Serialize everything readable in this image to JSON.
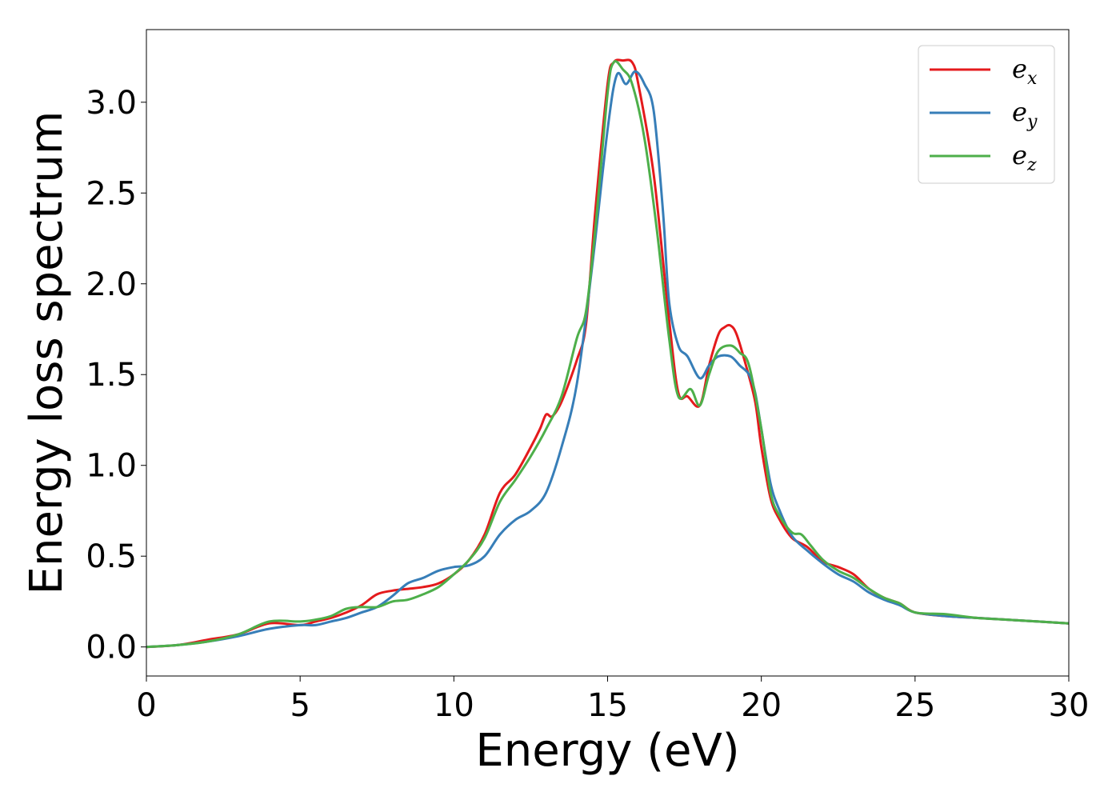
{
  "chart_data": {
    "type": "line",
    "title": "",
    "xlabel": "Energy (eV)",
    "ylabel": "Energy loss spectrum",
    "xlim": [
      0,
      30
    ],
    "ylim": [
      -0.16,
      3.4
    ],
    "xticks": [
      0,
      5,
      10,
      15,
      20,
      25,
      30
    ],
    "xtick_labels": [
      "0",
      "5",
      "10",
      "15",
      "20",
      "25",
      "30"
    ],
    "yticks": [
      0.0,
      0.5,
      1.0,
      1.5,
      2.0,
      2.5,
      3.0
    ],
    "ytick_labels": [
      "0.0",
      "0.5",
      "1.0",
      "1.5",
      "2.0",
      "2.5",
      "3.0"
    ],
    "grid": false,
    "legend_position": "top-right",
    "series": [
      {
        "name": "e_x",
        "legend_base": "e",
        "legend_sub": "x",
        "color": "#e41a1c",
        "x": [
          0,
          1,
          2,
          3,
          4,
          5,
          5.5,
          6,
          6.5,
          7,
          7.5,
          8,
          8.5,
          9,
          9.5,
          10,
          10.5,
          11,
          11.5,
          12,
          12.5,
          12.8,
          13,
          13.2,
          13.5,
          14,
          14.3,
          14.6,
          15,
          15.2,
          15.5,
          15.8,
          16,
          16.5,
          17,
          17.3,
          17.6,
          18,
          18.3,
          18.6,
          18.8,
          19,
          19.2,
          19.5,
          19.8,
          20,
          20.3,
          20.6,
          21,
          21.5,
          22,
          22.5,
          23,
          23.5,
          24,
          24.5,
          25,
          26,
          27,
          28,
          29,
          30
        ],
        "y": [
          0.0,
          0.01,
          0.04,
          0.07,
          0.13,
          0.12,
          0.14,
          0.16,
          0.19,
          0.23,
          0.29,
          0.31,
          0.32,
          0.33,
          0.35,
          0.4,
          0.48,
          0.62,
          0.85,
          0.95,
          1.1,
          1.2,
          1.28,
          1.27,
          1.35,
          1.58,
          1.78,
          2.4,
          3.1,
          3.22,
          3.23,
          3.22,
          3.1,
          2.6,
          1.8,
          1.4,
          1.38,
          1.33,
          1.55,
          1.72,
          1.76,
          1.77,
          1.72,
          1.55,
          1.35,
          1.1,
          0.82,
          0.7,
          0.6,
          0.55,
          0.47,
          0.44,
          0.4,
          0.32,
          0.27,
          0.24,
          0.19,
          0.17,
          0.16,
          0.15,
          0.14,
          0.13
        ]
      },
      {
        "name": "e_y",
        "legend_base": "e",
        "legend_sub": "y",
        "color": "#377eb8",
        "x": [
          0,
          1,
          2,
          3,
          4,
          5,
          5.5,
          6,
          6.5,
          7,
          7.5,
          8,
          8.5,
          9,
          9.5,
          10,
          10.5,
          11,
          11.5,
          12,
          12.5,
          13,
          13.5,
          14,
          14.5,
          15,
          15.3,
          15.6,
          15.9,
          16.2,
          16.5,
          16.8,
          17,
          17.3,
          17.6,
          18,
          18.3,
          18.6,
          19,
          19.3,
          19.6,
          19.8,
          20,
          20.3,
          20.6,
          21,
          21.5,
          22,
          22.5,
          23,
          23.5,
          24,
          24.5,
          25,
          26,
          27,
          28,
          29,
          30
        ],
        "y": [
          0.0,
          0.01,
          0.03,
          0.06,
          0.1,
          0.12,
          0.12,
          0.14,
          0.16,
          0.19,
          0.22,
          0.28,
          0.35,
          0.38,
          0.42,
          0.44,
          0.45,
          0.5,
          0.62,
          0.7,
          0.75,
          0.85,
          1.1,
          1.45,
          2.1,
          2.85,
          3.15,
          3.1,
          3.17,
          3.1,
          2.95,
          2.4,
          1.9,
          1.66,
          1.6,
          1.48,
          1.55,
          1.6,
          1.6,
          1.55,
          1.5,
          1.4,
          1.2,
          0.9,
          0.75,
          0.61,
          0.53,
          0.46,
          0.4,
          0.36,
          0.3,
          0.26,
          0.23,
          0.19,
          0.17,
          0.16,
          0.15,
          0.14,
          0.13
        ]
      },
      {
        "name": "e_z",
        "legend_base": "e",
        "legend_sub": "z",
        "color": "#4daf4a",
        "x": [
          0,
          1,
          2,
          3,
          4,
          5,
          5.5,
          6,
          6.5,
          7,
          7.5,
          8,
          8.5,
          9,
          9.5,
          10,
          10.5,
          11,
          11.5,
          12,
          12.5,
          13,
          13.5,
          14,
          14.3,
          14.6,
          15,
          15.2,
          15.5,
          15.8,
          16.2,
          16.6,
          17,
          17.3,
          17.7,
          18,
          18.3,
          18.6,
          19,
          19.3,
          19.6,
          20,
          20.3,
          20.6,
          21,
          21.3,
          21.6,
          22,
          22.5,
          23,
          23.5,
          24,
          24.5,
          25,
          26,
          27,
          28,
          29,
          30
        ],
        "y": [
          0.0,
          0.01,
          0.03,
          0.07,
          0.14,
          0.14,
          0.15,
          0.17,
          0.21,
          0.22,
          0.22,
          0.25,
          0.26,
          0.29,
          0.33,
          0.4,
          0.48,
          0.6,
          0.8,
          0.92,
          1.05,
          1.2,
          1.38,
          1.7,
          1.85,
          2.3,
          3.05,
          3.22,
          3.18,
          3.1,
          2.8,
          2.3,
          1.7,
          1.38,
          1.42,
          1.33,
          1.5,
          1.63,
          1.66,
          1.62,
          1.55,
          1.2,
          0.85,
          0.72,
          0.63,
          0.62,
          0.56,
          0.48,
          0.42,
          0.38,
          0.32,
          0.27,
          0.24,
          0.19,
          0.18,
          0.16,
          0.15,
          0.14,
          0.13
        ]
      }
    ]
  }
}
